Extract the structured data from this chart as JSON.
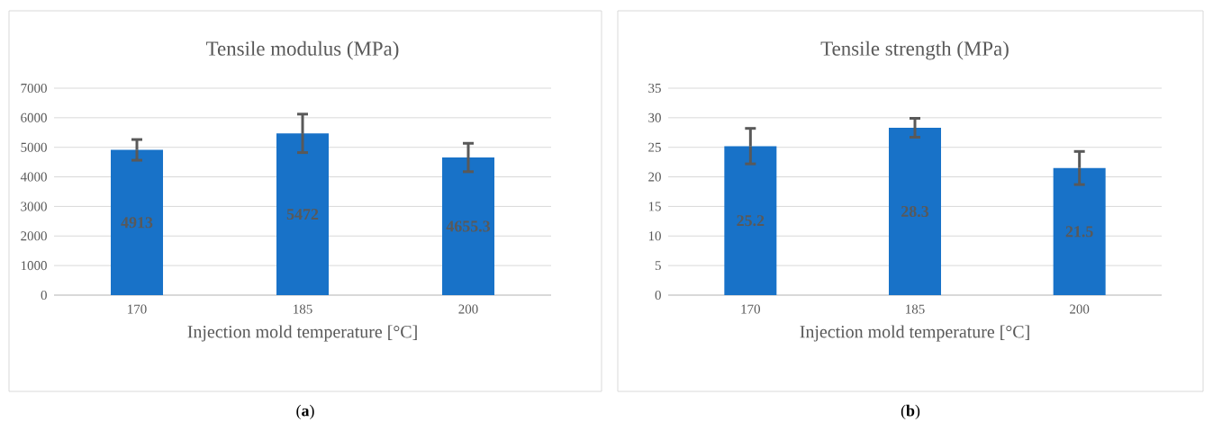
{
  "chart_data": [
    {
      "type": "bar",
      "title": "Tensile modulus (MPa)",
      "xlabel": "Injection mold temperature [°C]",
      "categories": [
        "170",
        "185",
        "200"
      ],
      "values": [
        4913,
        5472,
        4655.3
      ],
      "errors": [
        350,
        650,
        480
      ],
      "color": "#1872c8",
      "ylim": [
        0,
        7000
      ],
      "yticks": [
        0,
        1000,
        2000,
        3000,
        4000,
        5000,
        6000,
        7000
      ],
      "grid": "y",
      "data_labels": true,
      "annotations": [
        "(**a**)"
      ]
    },
    {
      "type": "bar",
      "title": "Tensile strength (MPa)",
      "xlabel": "Injection mold temperature [°C]",
      "categories": [
        "170",
        "185",
        "200"
      ],
      "values": [
        25.2,
        28.3,
        21.5
      ],
      "errors": [
        3,
        1.6,
        2.8
      ],
      "color": "#1872c8",
      "ylim": [
        0,
        35
      ],
      "yticks": [
        0,
        5,
        10,
        15,
        20,
        25,
        30,
        35
      ],
      "grid": "y",
      "data_labels": true,
      "annotations": [
        "(**b**)"
      ]
    }
  ]
}
